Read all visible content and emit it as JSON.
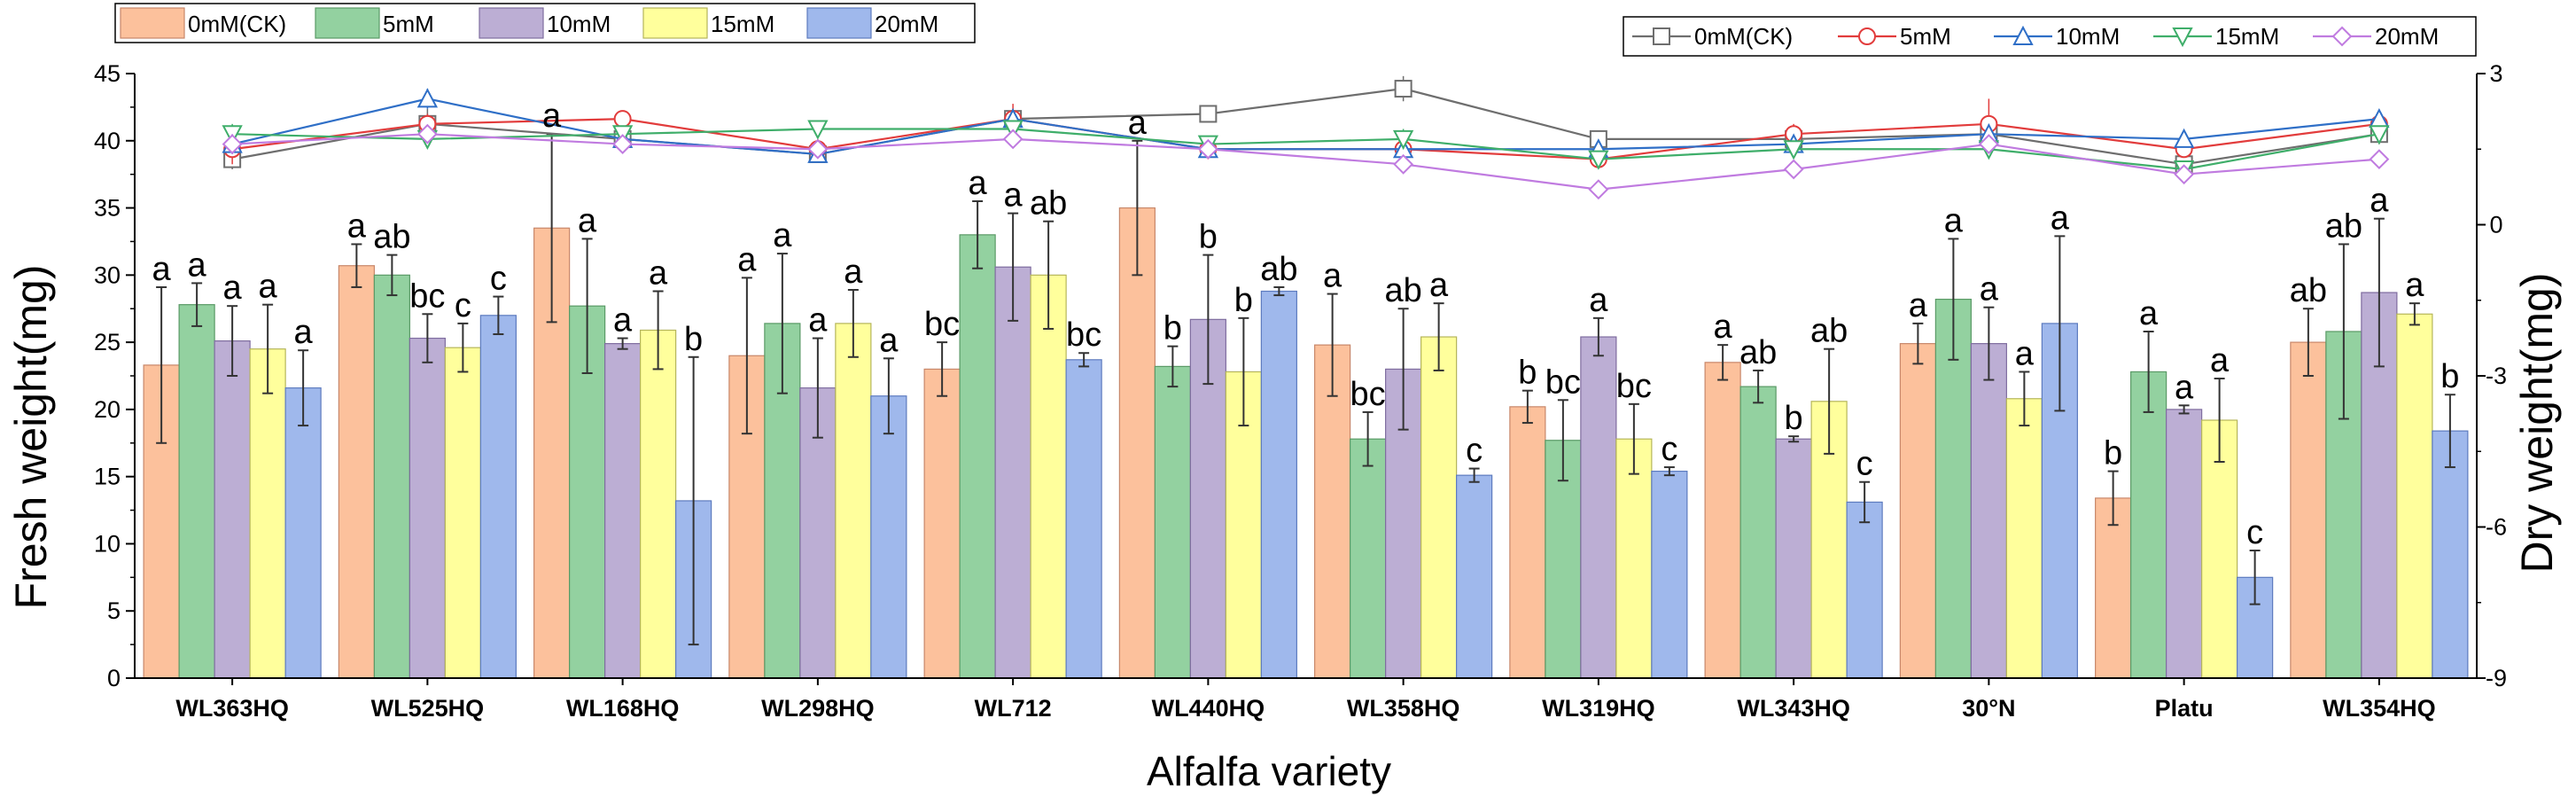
{
  "chart_data": {
    "type": "bar",
    "title": "",
    "xlabel": "Alfalfa variety",
    "ylabel": "Fresh weight(mg)",
    "y2label": "Dry weight(mg)",
    "ylim": [
      0,
      45
    ],
    "y2lim": [
      -9,
      3
    ],
    "yticks": [
      0,
      5,
      10,
      15,
      20,
      25,
      30,
      35,
      40,
      45
    ],
    "y2ticks": [
      -9,
      -6,
      -3,
      0,
      3
    ],
    "categories": [
      "WL363HQ",
      "WL525HQ",
      "WL168HQ",
      "WL298HQ",
      "WL712",
      "WL440HQ",
      "WL358HQ",
      "WL319HQ",
      "WL343HQ",
      "30°N",
      "Platu",
      "WL354HQ"
    ],
    "series": [
      {
        "name": "0mM(CK)",
        "color": "#fcc19c",
        "edge": "#c8876a",
        "values": [
          23.3,
          30.7,
          33.5,
          24.0,
          23.0,
          35.0,
          24.8,
          20.2,
          23.5,
          24.9,
          13.4,
          25.0
        ],
        "errors": [
          5.8,
          1.6,
          7.0,
          5.8,
          2.0,
          5.0,
          3.8,
          1.2,
          1.3,
          1.5,
          2.0,
          2.5
        ],
        "letters": [
          "a",
          "a",
          "a",
          "a",
          "bc",
          "a",
          "a",
          "b",
          "a",
          "a",
          "b",
          "ab"
        ]
      },
      {
        "name": "5mM",
        "color": "#93d1a0",
        "edge": "#5a9a66",
        "values": [
          27.8,
          30.0,
          27.7,
          26.4,
          33.0,
          23.2,
          17.8,
          17.7,
          21.7,
          28.2,
          22.8,
          25.8
        ],
        "errors": [
          1.6,
          1.5,
          5.0,
          5.2,
          2.5,
          1.5,
          2.0,
          3.0,
          1.2,
          4.5,
          3.0,
          6.5
        ],
        "letters": [
          "a",
          "ab",
          "a",
          "a",
          "a",
          "b",
          "bc",
          "bc",
          "ab",
          "a",
          "a",
          "ab"
        ]
      },
      {
        "name": "10mM",
        "color": "#bcaed4",
        "edge": "#7f6d9f",
        "values": [
          25.1,
          25.3,
          24.9,
          21.6,
          30.6,
          26.7,
          23.0,
          25.4,
          17.8,
          24.9,
          20.0,
          28.7
        ],
        "errors": [
          2.6,
          1.8,
          0.4,
          3.7,
          4.0,
          4.8,
          4.5,
          1.4,
          0.2,
          2.7,
          0.3,
          5.5
        ],
        "letters": [
          "a",
          "bc",
          "a",
          "a",
          "a",
          "b",
          "ab",
          "a",
          "b",
          "a",
          "a",
          "a"
        ]
      },
      {
        "name": "15mM",
        "color": "#ffff9c",
        "edge": "#b5b55a",
        "values": [
          24.5,
          24.6,
          25.9,
          26.4,
          30.0,
          22.8,
          25.4,
          17.8,
          20.6,
          20.8,
          19.2,
          27.1
        ],
        "errors": [
          3.3,
          1.8,
          2.9,
          2.5,
          4.0,
          4.0,
          2.5,
          2.6,
          3.9,
          2.0,
          3.1,
          0.8
        ],
        "letters": [
          "a",
          "c",
          "a",
          "a",
          "ab",
          "b",
          "a",
          "bc",
          "ab",
          "a",
          "a",
          "a"
        ]
      },
      {
        "name": "20mM",
        "color": "#9fb8ec",
        "edge": "#5d7bbf",
        "values": [
          21.6,
          27.0,
          13.2,
          21.0,
          23.7,
          28.8,
          15.1,
          15.4,
          13.1,
          26.4,
          7.5,
          18.4
        ],
        "errors": [
          2.8,
          1.4,
          10.7,
          2.8,
          0.5,
          0.3,
          0.5,
          0.3,
          1.5,
          6.5,
          2.0,
          2.7
        ],
        "letters": [
          "a",
          "c",
          "b",
          "a",
          "bc",
          "ab",
          "c",
          "c",
          "c",
          "a",
          "c",
          "b"
        ]
      }
    ],
    "lines": [
      {
        "name": "0mM(CK)",
        "color": "#6e6e6e",
        "marker": "square",
        "values": [
          1.3,
          2.0,
          1.7,
          1.4,
          2.1,
          2.2,
          2.7,
          1.7,
          1.7,
          1.8,
          1.2,
          1.8
        ],
        "errors": [
          0.2,
          0.3,
          0.15,
          0.15,
          0.2,
          0.15,
          0.25,
          0.15,
          0.2,
          0.3,
          0.1,
          0.2
        ]
      },
      {
        "name": "5mM",
        "color": "#e23c3c",
        "marker": "circle",
        "values": [
          1.5,
          2.0,
          2.1,
          1.5,
          2.1,
          1.5,
          1.5,
          1.3,
          1.8,
          2.0,
          1.5,
          2.0
        ],
        "errors": [
          0.3,
          0.2,
          0.15,
          0.2,
          0.3,
          0.2,
          0.15,
          0.15,
          0.2,
          0.5,
          0.1,
          0.15
        ]
      },
      {
        "name": "10mM",
        "color": "#2f6fc7",
        "marker": "triangle-up",
        "values": [
          1.6,
          2.5,
          1.7,
          1.4,
          2.1,
          1.5,
          1.5,
          1.5,
          1.6,
          1.8,
          1.7,
          2.1
        ],
        "errors": [
          0.2,
          0.2,
          0.15,
          0.15,
          0.2,
          0.15,
          0.15,
          0.15,
          0.15,
          0.2,
          0.1,
          0.15
        ]
      },
      {
        "name": "15mM",
        "color": "#3fae6a",
        "marker": "triangle-down",
        "values": [
          1.8,
          1.7,
          1.8,
          1.9,
          1.9,
          1.6,
          1.7,
          1.3,
          1.5,
          1.5,
          1.1,
          1.8
        ],
        "errors": [
          0.2,
          0.15,
          0.15,
          0.15,
          0.15,
          0.15,
          0.2,
          0.15,
          0.15,
          0.15,
          0.1,
          0.15
        ]
      },
      {
        "name": "20mM",
        "color": "#c07be0",
        "marker": "diamond",
        "values": [
          1.6,
          1.8,
          1.6,
          1.5,
          1.7,
          1.5,
          1.2,
          0.7,
          1.1,
          1.6,
          1.0,
          1.3
        ],
        "errors": [
          0.2,
          0.15,
          0.15,
          0.15,
          0.15,
          0.15,
          0.15,
          0.1,
          0.1,
          0.15,
          0.1,
          0.15
        ]
      }
    ],
    "legend_bars_position": "top-left",
    "legend_lines_position": "top-right"
  }
}
